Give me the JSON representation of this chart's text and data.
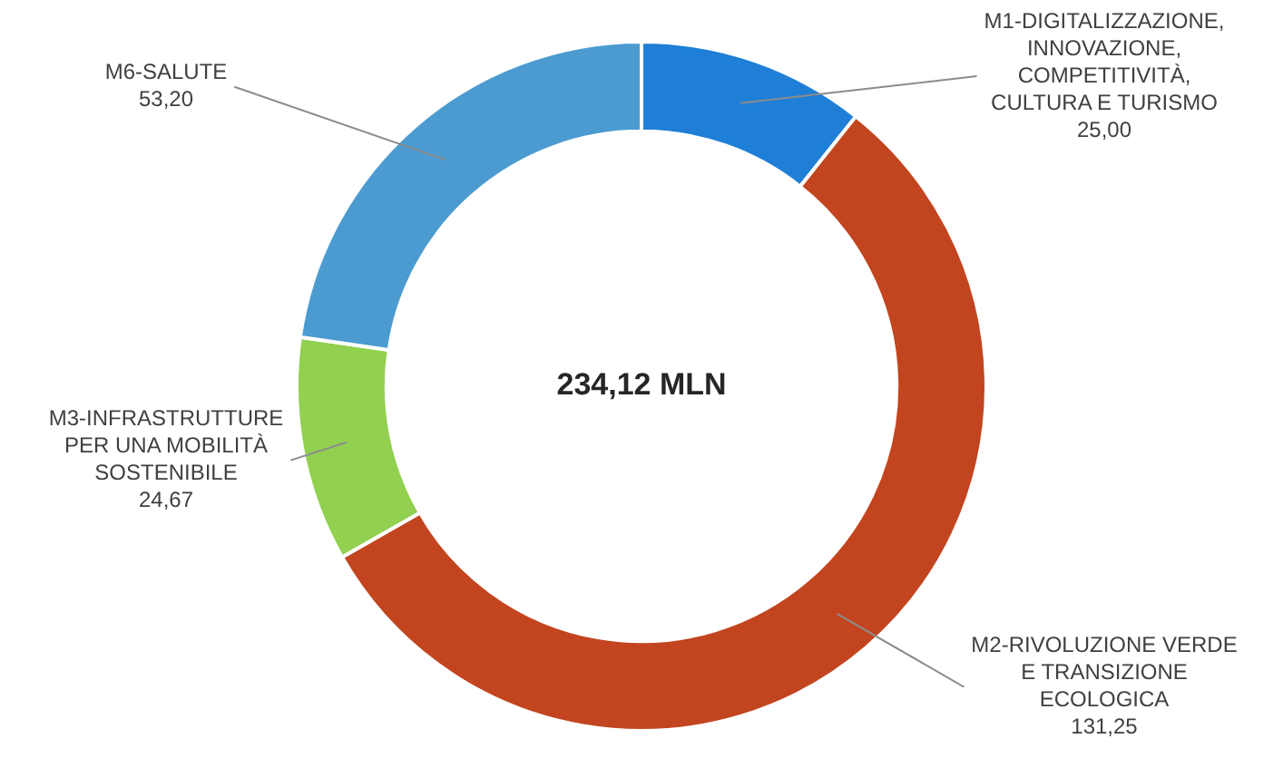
{
  "chart_data": {
    "type": "donut",
    "categories": [
      "M1-DIGITALIZZAZIONE, INNOVAZIONE, COMPETITIVITÀ, CULTURA E TURISMO",
      "M2-RIVOLUZIONE VERDE E TRANSIZIONE ECOLOGICA",
      "M3-INFRASTRUTTURE PER UNA MOBILITÀ SOSTENIBILE",
      "M6-SALUTE"
    ],
    "values": [
      25.0,
      131.25,
      24.67,
      53.2
    ],
    "value_labels": [
      "25,00",
      "131,25",
      "24,67",
      "53,20"
    ],
    "colors": [
      "#1f7fd6",
      "#c2451f",
      "#92d050",
      "#4b9bd1"
    ],
    "annotations": [
      "234,12 MLN"
    ],
    "legend": false
  }
}
